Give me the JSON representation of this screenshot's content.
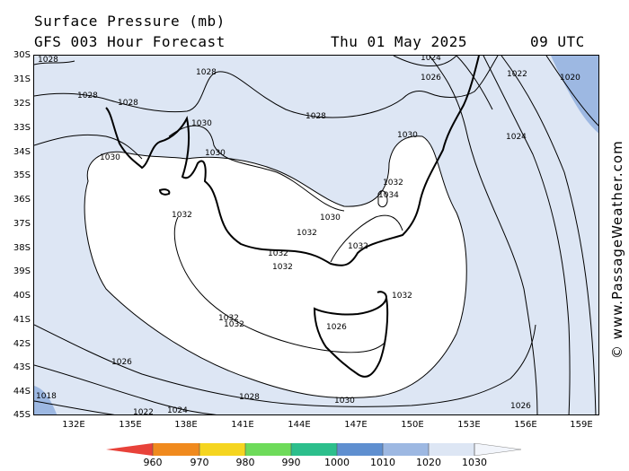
{
  "header": {
    "title": "Surface Pressure (mb)",
    "model": "GFS 003 Hour Forecast",
    "date": "Thu 01 May 2025",
    "time": "09 UTC"
  },
  "axes": {
    "lat_labels": [
      "30S",
      "31S",
      "32S",
      "33S",
      "34S",
      "35S",
      "36S",
      "37S",
      "38S",
      "39S",
      "40S",
      "41S",
      "42S",
      "43S",
      "44S",
      "45S"
    ],
    "lon_labels": [
      "132E",
      "135E",
      "138E",
      "141E",
      "144E",
      "147E",
      "150E",
      "153E",
      "156E",
      "159E"
    ]
  },
  "isobar_labels": [
    "1028",
    "1028",
    "1028",
    "1028",
    "1028",
    "1026",
    "1024",
    "1022",
    "1020",
    "1024",
    "1030",
    "1030",
    "1030",
    "1030",
    "1032",
    "1032",
    "1032",
    "1032",
    "1032",
    "1032",
    "1032",
    "1032",
    "1034",
    "1030",
    "1032",
    "1026",
    "1018",
    "1026",
    "1028",
    "1024",
    "1022",
    "1026",
    "1030"
  ],
  "colorbar": {
    "labels": [
      "960",
      "970",
      "980",
      "990",
      "1000",
      "1010",
      "1020",
      "1030"
    ],
    "colors": [
      "#e8423a",
      "#f08a1e",
      "#f5d520",
      "#6edb5a",
      "#2cbf8c",
      "#5f8fd0",
      "#9db8e2",
      "#dde6f4"
    ]
  },
  "watermark": "© www.PassageWeather.com"
}
